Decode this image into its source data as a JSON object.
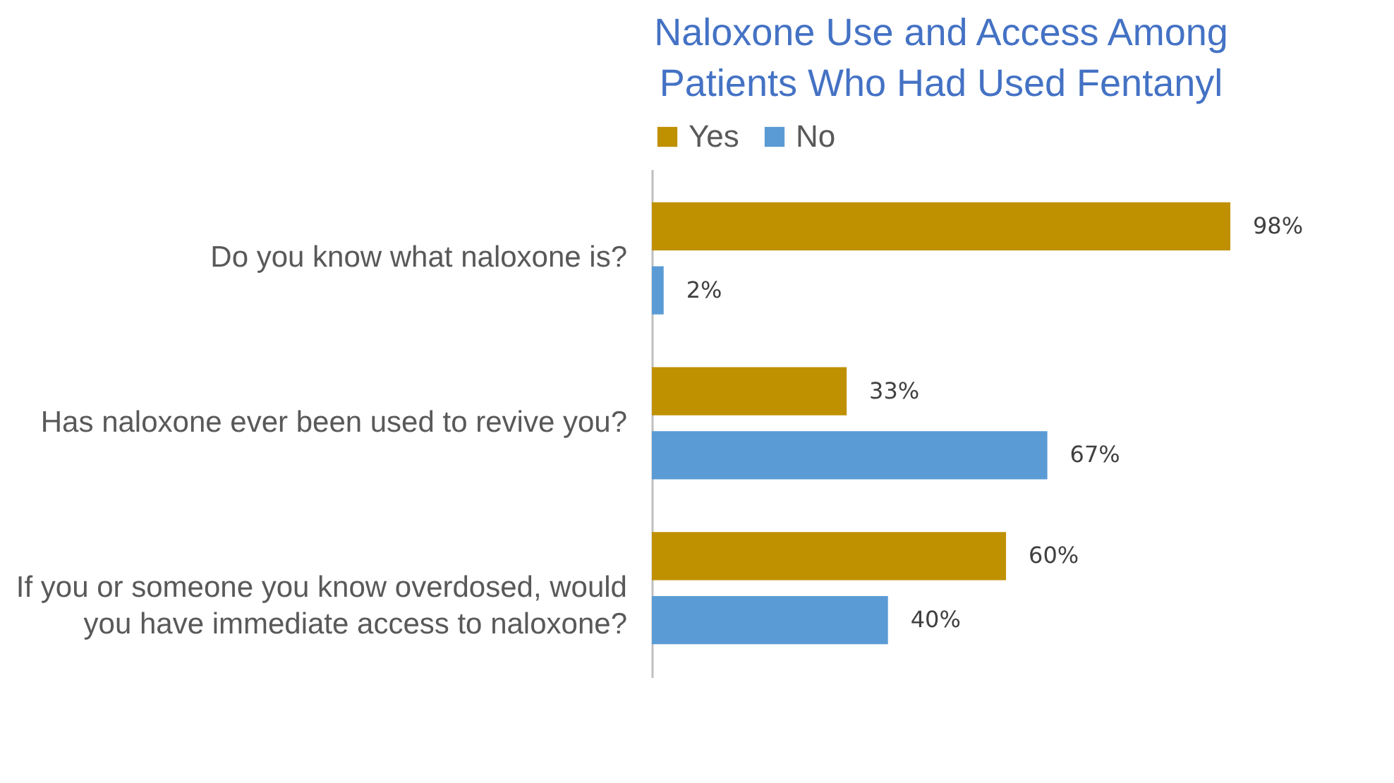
{
  "chart_data": {
    "type": "bar",
    "orientation": "horizontal",
    "title": "Naloxone Use and Access Among Patients Who Had Used Fentanyl",
    "categories": [
      "Do you know what naloxone is?",
      "Has naloxone ever been used to revive you?",
      "If you or someone you know overdosed, would you have immediate access to naloxone?"
    ],
    "series": [
      {
        "name": "Yes",
        "color": "#bf9000",
        "values": [
          98,
          33,
          60
        ],
        "value_labels": [
          "98%",
          "33%",
          "60%"
        ]
      },
      {
        "name": "No",
        "color": "#5b9bd5",
        "values": [
          2,
          67,
          40
        ],
        "value_labels": [
          "2%",
          "67%",
          "40%"
        ]
      }
    ],
    "legend": "top",
    "grid": false
  }
}
